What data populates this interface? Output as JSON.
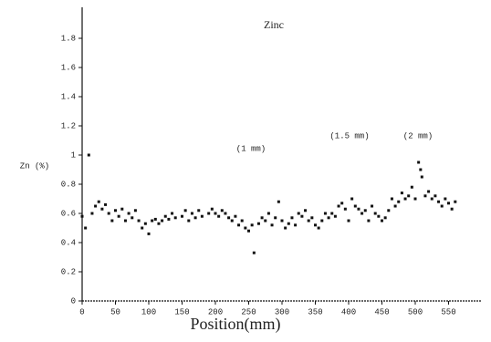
{
  "chart_data": {
    "type": "scatter",
    "title": "Zinc",
    "x_label": "Position(mm)",
    "y_label": "Zn (%)",
    "annotations": [
      "(1 mm)",
      "(1.5 mm)",
      "(2 mm)"
    ],
    "color": "#111111",
    "xlim": [
      0,
      600
    ],
    "xticks": [
      0,
      50,
      100,
      150,
      200,
      250,
      300,
      350,
      400,
      450,
      500,
      550
    ],
    "ylim": [
      0,
      2
    ],
    "yticks": [
      0,
      0.2,
      0.4,
      0.6,
      0.8,
      1,
      1.2,
      1.4,
      1.6,
      1.8
    ],
    "x": [
      0,
      5,
      10,
      15,
      20,
      25,
      30,
      35,
      40,
      45,
      50,
      55,
      60,
      65,
      70,
      75,
      80,
      85,
      90,
      95,
      100,
      105,
      110,
      115,
      120,
      125,
      130,
      135,
      140,
      150,
      155,
      160,
      165,
      170,
      175,
      180,
      190,
      195,
      200,
      205,
      210,
      215,
      220,
      225,
      230,
      235,
      240,
      245,
      250,
      255,
      258,
      265,
      270,
      275,
      280,
      285,
      290,
      295,
      300,
      305,
      310,
      315,
      320,
      325,
      330,
      335,
      340,
      345,
      350,
      355,
      360,
      365,
      370,
      375,
      380,
      385,
      390,
      395,
      400,
      405,
      410,
      415,
      420,
      425,
      430,
      435,
      440,
      445,
      450,
      455,
      460,
      465,
      470,
      475,
      480,
      485,
      490,
      495,
      500,
      505,
      508,
      510,
      515,
      520,
      525,
      530,
      535,
      540,
      545,
      550,
      555,
      560
    ],
    "y": [
      0.58,
      0.5,
      1.0,
      0.6,
      0.65,
      0.68,
      0.63,
      0.66,
      0.6,
      0.55,
      0.62,
      0.58,
      0.63,
      0.55,
      0.6,
      0.57,
      0.62,
      0.55,
      0.5,
      0.53,
      0.46,
      0.55,
      0.56,
      0.53,
      0.55,
      0.58,
      0.56,
      0.6,
      0.57,
      0.58,
      0.62,
      0.55,
      0.6,
      0.57,
      0.62,
      0.58,
      0.6,
      0.63,
      0.6,
      0.58,
      0.62,
      0.6,
      0.57,
      0.55,
      0.58,
      0.52,
      0.55,
      0.5,
      0.48,
      0.52,
      0.33,
      0.53,
      0.57,
      0.55,
      0.6,
      0.52,
      0.57,
      0.68,
      0.55,
      0.5,
      0.53,
      0.57,
      0.52,
      0.6,
      0.58,
      0.62,
      0.55,
      0.57,
      0.52,
      0.5,
      0.55,
      0.6,
      0.57,
      0.6,
      0.58,
      0.65,
      0.67,
      0.63,
      0.55,
      0.7,
      0.65,
      0.63,
      0.6,
      0.62,
      0.55,
      0.65,
      0.6,
      0.58,
      0.55,
      0.57,
      0.62,
      0.7,
      0.65,
      0.68,
      0.74,
      0.7,
      0.72,
      0.78,
      0.7,
      0.95,
      0.9,
      0.85,
      0.72,
      0.75,
      0.7,
      0.72,
      0.68,
      0.65,
      0.7,
      0.67,
      0.63,
      0.68
    ]
  }
}
